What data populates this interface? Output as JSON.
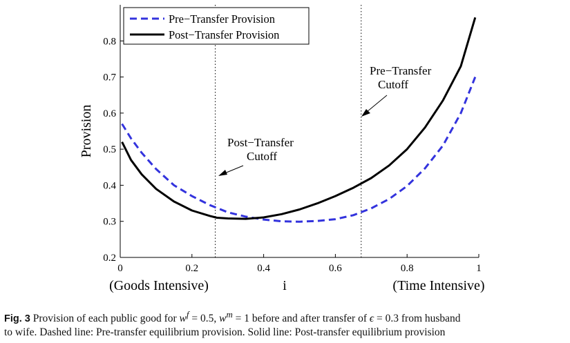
{
  "chart_data": {
    "type": "line",
    "xlabel": "i",
    "xlabel_left": "(Goods Intensive)",
    "xlabel_right": "(Time Intensive)",
    "ylabel": "Provision",
    "xlim": [
      0,
      1
    ],
    "ylim": [
      0.2,
      0.9
    ],
    "xticks": [
      "0",
      "0.2",
      "0.4",
      "0.6",
      "0.8",
      "1"
    ],
    "yticks": [
      "0.2",
      "0.3",
      "0.4",
      "0.5",
      "0.6",
      "0.7",
      "0.8"
    ],
    "grid": false,
    "legend_position": "top-left",
    "series": [
      {
        "name": "Pre−Transfer Provision",
        "style": "dashed",
        "color": "#3333dd",
        "x": [
          0.005,
          0.03,
          0.06,
          0.1,
          0.15,
          0.2,
          0.25,
          0.3,
          0.35,
          0.4,
          0.45,
          0.5,
          0.55,
          0.6,
          0.65,
          0.7,
          0.75,
          0.8,
          0.85,
          0.9,
          0.95,
          0.99
        ],
        "y": [
          0.57,
          0.53,
          0.49,
          0.445,
          0.4,
          0.37,
          0.345,
          0.325,
          0.313,
          0.305,
          0.3,
          0.299,
          0.301,
          0.306,
          0.317,
          0.336,
          0.362,
          0.398,
          0.447,
          0.51,
          0.6,
          0.7
        ]
      },
      {
        "name": "Post−Transfer Provision",
        "style": "solid",
        "color": "#000000",
        "x": [
          0.005,
          0.03,
          0.06,
          0.1,
          0.15,
          0.2,
          0.25,
          0.27,
          0.3,
          0.35,
          0.4,
          0.45,
          0.5,
          0.55,
          0.6,
          0.65,
          0.7,
          0.75,
          0.8,
          0.85,
          0.9,
          0.95,
          0.99
        ],
        "y": [
          0.52,
          0.47,
          0.43,
          0.39,
          0.355,
          0.33,
          0.315,
          0.31,
          0.308,
          0.307,
          0.311,
          0.32,
          0.333,
          0.35,
          0.37,
          0.393,
          0.42,
          0.455,
          0.5,
          0.56,
          0.635,
          0.73,
          0.865
        ]
      }
    ],
    "cutoffs": [
      {
        "name": "post-transfer-cutoff",
        "x": 0.265
      },
      {
        "name": "pre-transfer-cutoff",
        "x": 0.672
      }
    ],
    "annotations": [
      {
        "line1": "Post−Transfer",
        "line2": "Cutoff"
      },
      {
        "line1": "Pre−Transfer",
        "line2": "Cutoff"
      }
    ]
  },
  "caption": {
    "fig_label": "Fig. 3",
    "part1": "Provision of each public good for ",
    "wf": "w",
    "wf_sup": "f",
    "eq1": " = 0.5, ",
    "wm": "w",
    "wm_sup": "m",
    "eq2": " = 1 before and after transfer of ",
    "eps": "ϵ",
    "eq3": " = 0.3 from husband",
    "line2": "to wife. Dashed line: Pre-transfer equilibrium provision. Solid line: Post-transfer equilibrium provision"
  }
}
